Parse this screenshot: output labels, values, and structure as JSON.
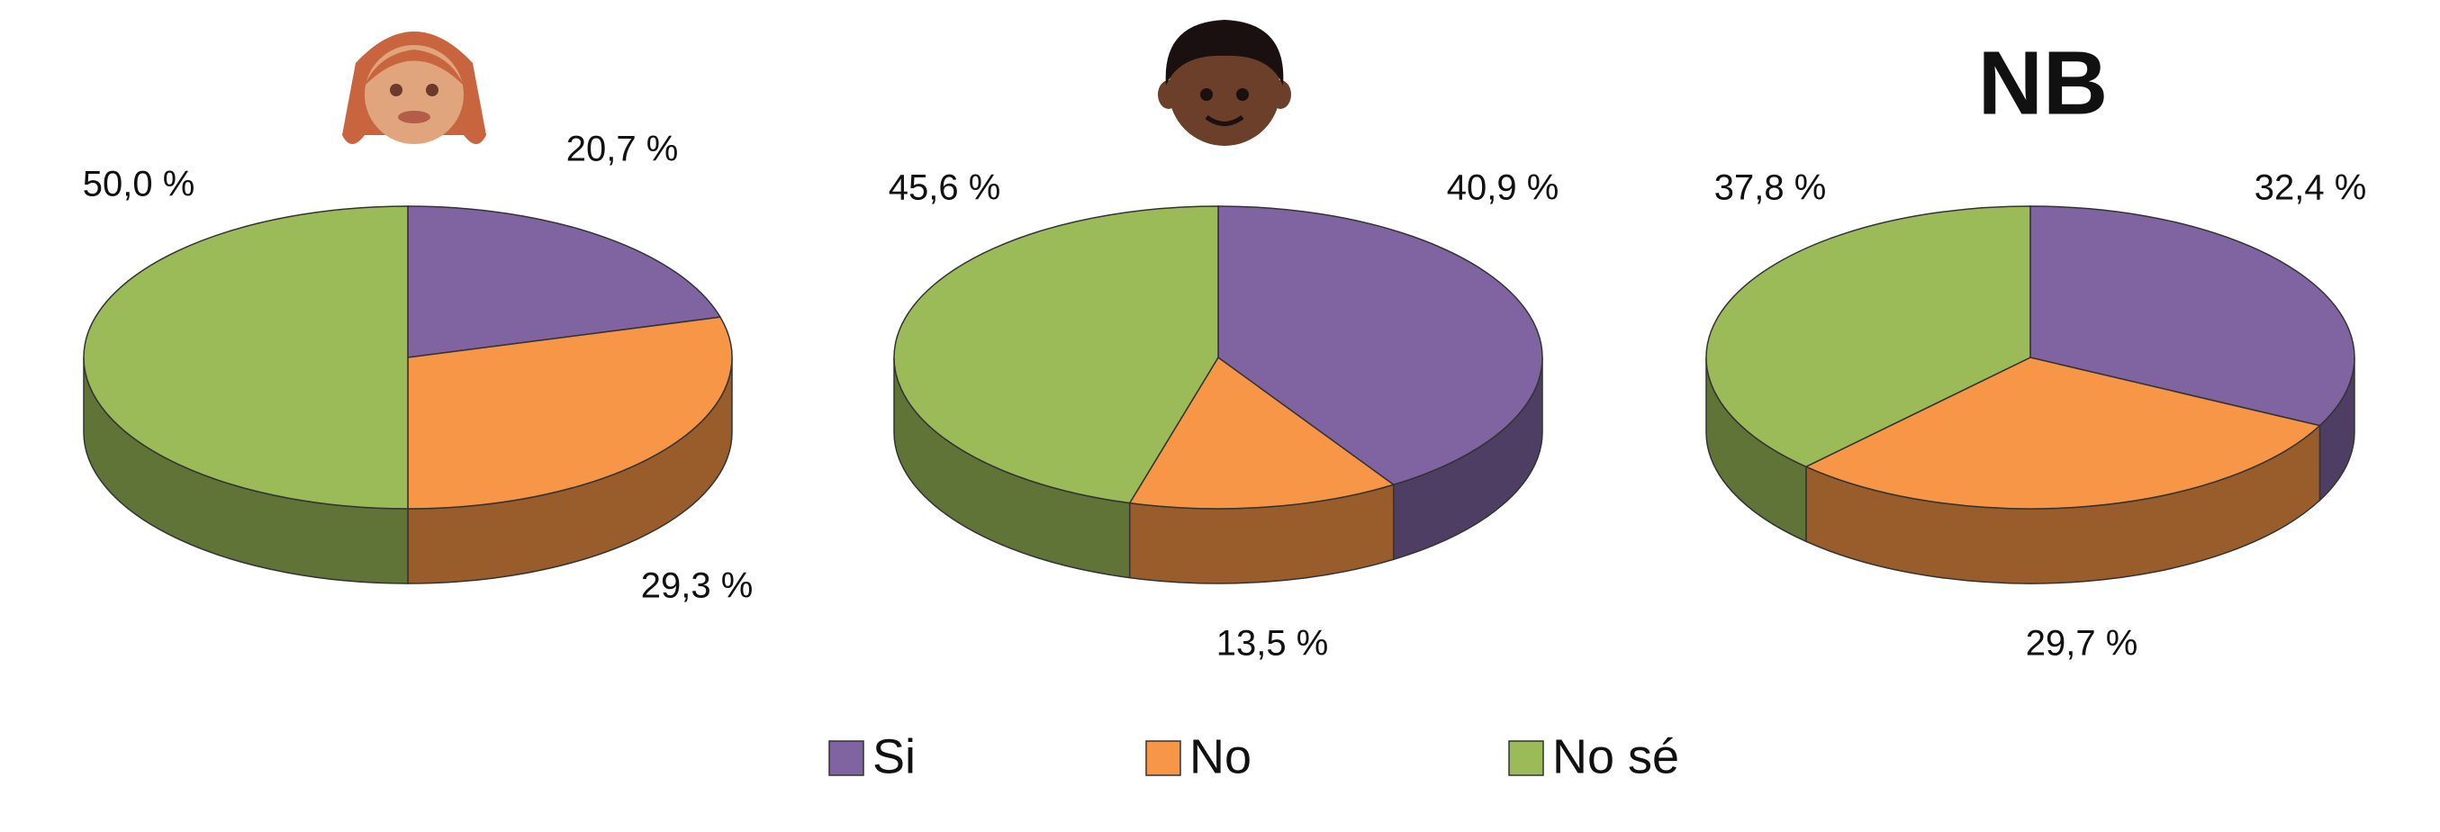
{
  "chart_data": [
    {
      "type": "pie",
      "categories": [
        "Si",
        "No",
        "No sé"
      ],
      "values": [
        20.7,
        29.3,
        50.0
      ],
      "value_labels": [
        "20,7 %",
        "29,3 %",
        "50,0 %"
      ],
      "colors": [
        "#8064a2",
        "#f79646",
        "#9bbb59"
      ]
    },
    {
      "type": "pie",
      "categories": [
        "Si",
        "No",
        "No sé"
      ],
      "values": [
        40.9,
        13.5,
        45.6
      ],
      "value_labels": [
        "40,9 %",
        "13,5 %",
        "45,6 %"
      ],
      "colors": [
        "#8064a2",
        "#f79646",
        "#9bbb59"
      ]
    },
    {
      "type": "pie",
      "title": "NB",
      "categories": [
        "Si",
        "No",
        "No sé"
      ],
      "values": [
        32.4,
        29.7,
        37.8
      ],
      "value_labels": [
        "32,4 %",
        "29,7 %",
        "37,8 %"
      ],
      "colors": [
        "#8064a2",
        "#f79646",
        "#9bbb59"
      ]
    }
  ]
}
